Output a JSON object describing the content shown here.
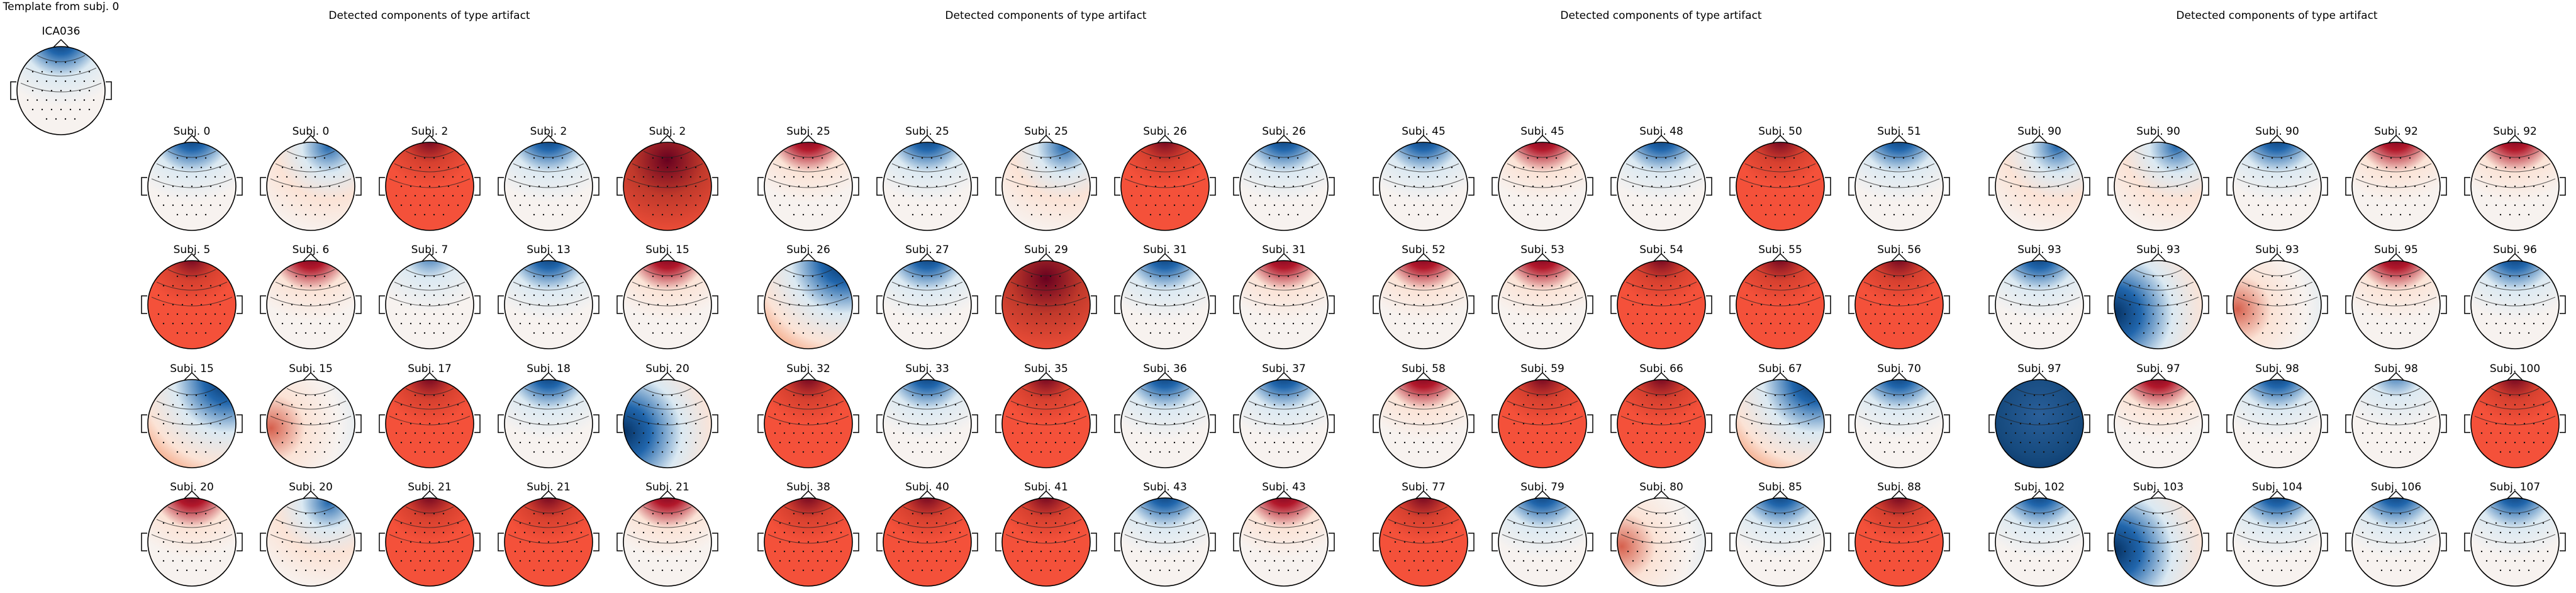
{
  "template": {
    "heading": "Template from subj. 0",
    "component": "ICA036",
    "pattern": "frontal-blue"
  },
  "groups": [
    {
      "title": "Detected components of type artifact",
      "maps": [
        {
          "label": "Subj. 0",
          "pattern": "frontal-blue"
        },
        {
          "label": "Subj. 0",
          "pattern": "mixed-blue"
        },
        {
          "label": "Subj. 2",
          "pattern": "red-full"
        },
        {
          "label": "Subj. 2",
          "pattern": "frontal-blue"
        },
        {
          "label": "Subj. 2",
          "pattern": "red-dark"
        },
        {
          "label": "Subj. 5",
          "pattern": "red-full"
        },
        {
          "label": "Subj. 6",
          "pattern": "frontal-red"
        },
        {
          "label": "Subj. 7",
          "pattern": "frontal-blue-light"
        },
        {
          "label": "Subj. 13",
          "pattern": "frontal-blue"
        },
        {
          "label": "Subj. 15",
          "pattern": "frontal-red"
        },
        {
          "label": "Subj. 15",
          "pattern": "corner-blue"
        },
        {
          "label": "Subj. 15",
          "pattern": "side-red"
        },
        {
          "label": "Subj. 17",
          "pattern": "red-full"
        },
        {
          "label": "Subj. 18",
          "pattern": "frontal-blue"
        },
        {
          "label": "Subj. 20",
          "pattern": "side-blue"
        },
        {
          "label": "Subj. 20",
          "pattern": "frontal-red"
        },
        {
          "label": "Subj. 20",
          "pattern": "mixed-blue"
        },
        {
          "label": "Subj. 21",
          "pattern": "red-full"
        },
        {
          "label": "Subj. 21",
          "pattern": "red-full"
        },
        {
          "label": "Subj. 21",
          "pattern": "frontal-red"
        }
      ]
    },
    {
      "title": "Detected components of type artifact",
      "maps": [
        {
          "label": "Subj. 25",
          "pattern": "frontal-red"
        },
        {
          "label": "Subj. 25",
          "pattern": "frontal-blue"
        },
        {
          "label": "Subj. 25",
          "pattern": "mixed-blue"
        },
        {
          "label": "Subj. 26",
          "pattern": "red-full"
        },
        {
          "label": "Subj. 26",
          "pattern": "frontal-blue"
        },
        {
          "label": "Subj. 26",
          "pattern": "corner-blue"
        },
        {
          "label": "Subj. 27",
          "pattern": "frontal-blue"
        },
        {
          "label": "Subj. 29",
          "pattern": "red-dark"
        },
        {
          "label": "Subj. 31",
          "pattern": "frontal-blue"
        },
        {
          "label": "Subj. 31",
          "pattern": "frontal-red"
        },
        {
          "label": "Subj. 32",
          "pattern": "red-full"
        },
        {
          "label": "Subj. 33",
          "pattern": "frontal-blue"
        },
        {
          "label": "Subj. 35",
          "pattern": "red-full"
        },
        {
          "label": "Subj. 36",
          "pattern": "frontal-blue"
        },
        {
          "label": "Subj. 37",
          "pattern": "frontal-blue"
        },
        {
          "label": "Subj. 38",
          "pattern": "red-full"
        },
        {
          "label": "Subj. 40",
          "pattern": "red-full"
        },
        {
          "label": "Subj. 41",
          "pattern": "red-full"
        },
        {
          "label": "Subj. 43",
          "pattern": "frontal-blue"
        },
        {
          "label": "Subj. 43",
          "pattern": "frontal-red"
        }
      ]
    },
    {
      "title": "Detected components of type artifact",
      "maps": [
        {
          "label": "Subj. 45",
          "pattern": "frontal-blue"
        },
        {
          "label": "Subj. 45",
          "pattern": "frontal-red"
        },
        {
          "label": "Subj. 48",
          "pattern": "frontal-blue"
        },
        {
          "label": "Subj. 50",
          "pattern": "red-full"
        },
        {
          "label": "Subj. 51",
          "pattern": "frontal-blue"
        },
        {
          "label": "Subj. 52",
          "pattern": "frontal-red"
        },
        {
          "label": "Subj. 53",
          "pattern": "frontal-red"
        },
        {
          "label": "Subj. 54",
          "pattern": "red-full"
        },
        {
          "label": "Subj. 55",
          "pattern": "red-full"
        },
        {
          "label": "Subj. 56",
          "pattern": "red-full"
        },
        {
          "label": "Subj. 58",
          "pattern": "frontal-red"
        },
        {
          "label": "Subj. 59",
          "pattern": "red-full"
        },
        {
          "label": "Subj. 66",
          "pattern": "red-full"
        },
        {
          "label": "Subj. 67",
          "pattern": "corner-blue"
        },
        {
          "label": "Subj. 70",
          "pattern": "frontal-blue"
        },
        {
          "label": "Subj. 77",
          "pattern": "red-full"
        },
        {
          "label": "Subj. 79",
          "pattern": "frontal-blue"
        },
        {
          "label": "Subj. 80",
          "pattern": "side-red"
        },
        {
          "label": "Subj. 85",
          "pattern": "frontal-blue"
        },
        {
          "label": "Subj. 88",
          "pattern": "red-full"
        }
      ]
    },
    {
      "title": "Detected components of type artifact",
      "maps": [
        {
          "label": "Subj. 90",
          "pattern": "mixed-blue"
        },
        {
          "label": "Subj. 90",
          "pattern": "mixed-blue"
        },
        {
          "label": "Subj. 90",
          "pattern": "frontal-blue"
        },
        {
          "label": "Subj. 92",
          "pattern": "frontal-red"
        },
        {
          "label": "Subj. 92",
          "pattern": "frontal-red"
        },
        {
          "label": "Subj. 93",
          "pattern": "frontal-blue"
        },
        {
          "label": "Subj. 93",
          "pattern": "side-blue"
        },
        {
          "label": "Subj. 93",
          "pattern": "side-red"
        },
        {
          "label": "Subj. 95",
          "pattern": "frontal-red"
        },
        {
          "label": "Subj. 96",
          "pattern": "frontal-blue"
        },
        {
          "label": "Subj. 97",
          "pattern": "blue-full"
        },
        {
          "label": "Subj. 97",
          "pattern": "frontal-red"
        },
        {
          "label": "Subj. 98",
          "pattern": "frontal-blue"
        },
        {
          "label": "Subj. 98",
          "pattern": "frontal-blue-light"
        },
        {
          "label": "Subj. 100",
          "pattern": "red-full"
        },
        {
          "label": "Subj. 102",
          "pattern": "frontal-blue"
        },
        {
          "label": "Subj. 103",
          "pattern": "side-blue"
        },
        {
          "label": "Subj. 104",
          "pattern": "frontal-blue"
        },
        {
          "label": "Subj. 106",
          "pattern": "frontal-blue"
        },
        {
          "label": "Subj. 107",
          "pattern": "frontal-blue"
        }
      ]
    }
  ],
  "colors": {
    "dark_red": "#67001f",
    "red": "#f4513a",
    "light_red": "#fbe3d6",
    "neutral": "#f7f2ef",
    "light_blue": "#dbe9f2",
    "blue": "#2166ac",
    "dark_blue": "#053061",
    "outline": "#000000"
  }
}
